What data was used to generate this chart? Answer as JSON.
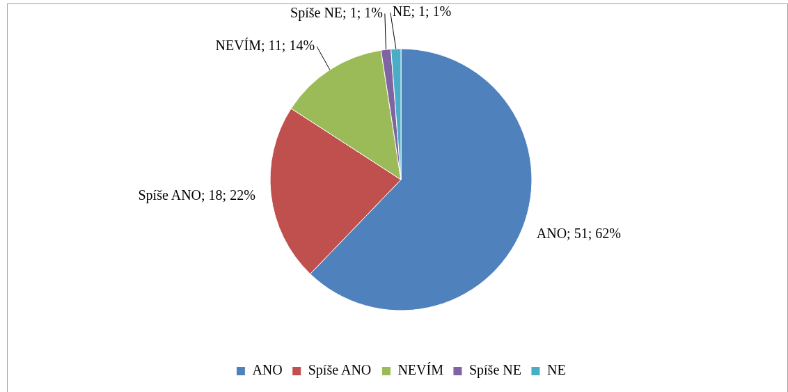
{
  "chart_data": {
    "type": "pie",
    "categories": [
      "ANO",
      "Spíše ANO",
      "NEVÍM",
      "Spíše NE",
      "NE"
    ],
    "values": [
      51,
      18,
      11,
      1,
      1
    ],
    "colors": [
      "#4f81bd",
      "#c0504d",
      "#9bbb59",
      "#8064a2",
      "#4bacc6"
    ],
    "value_labels": [
      "ANO; 51; 62%",
      "Spíše ANO; 18; 22%",
      "NEVÍM; 11; 14%",
      "Spíše NE; 1; 1%",
      "NE; 1; 1%"
    ],
    "legend": "bottom"
  }
}
